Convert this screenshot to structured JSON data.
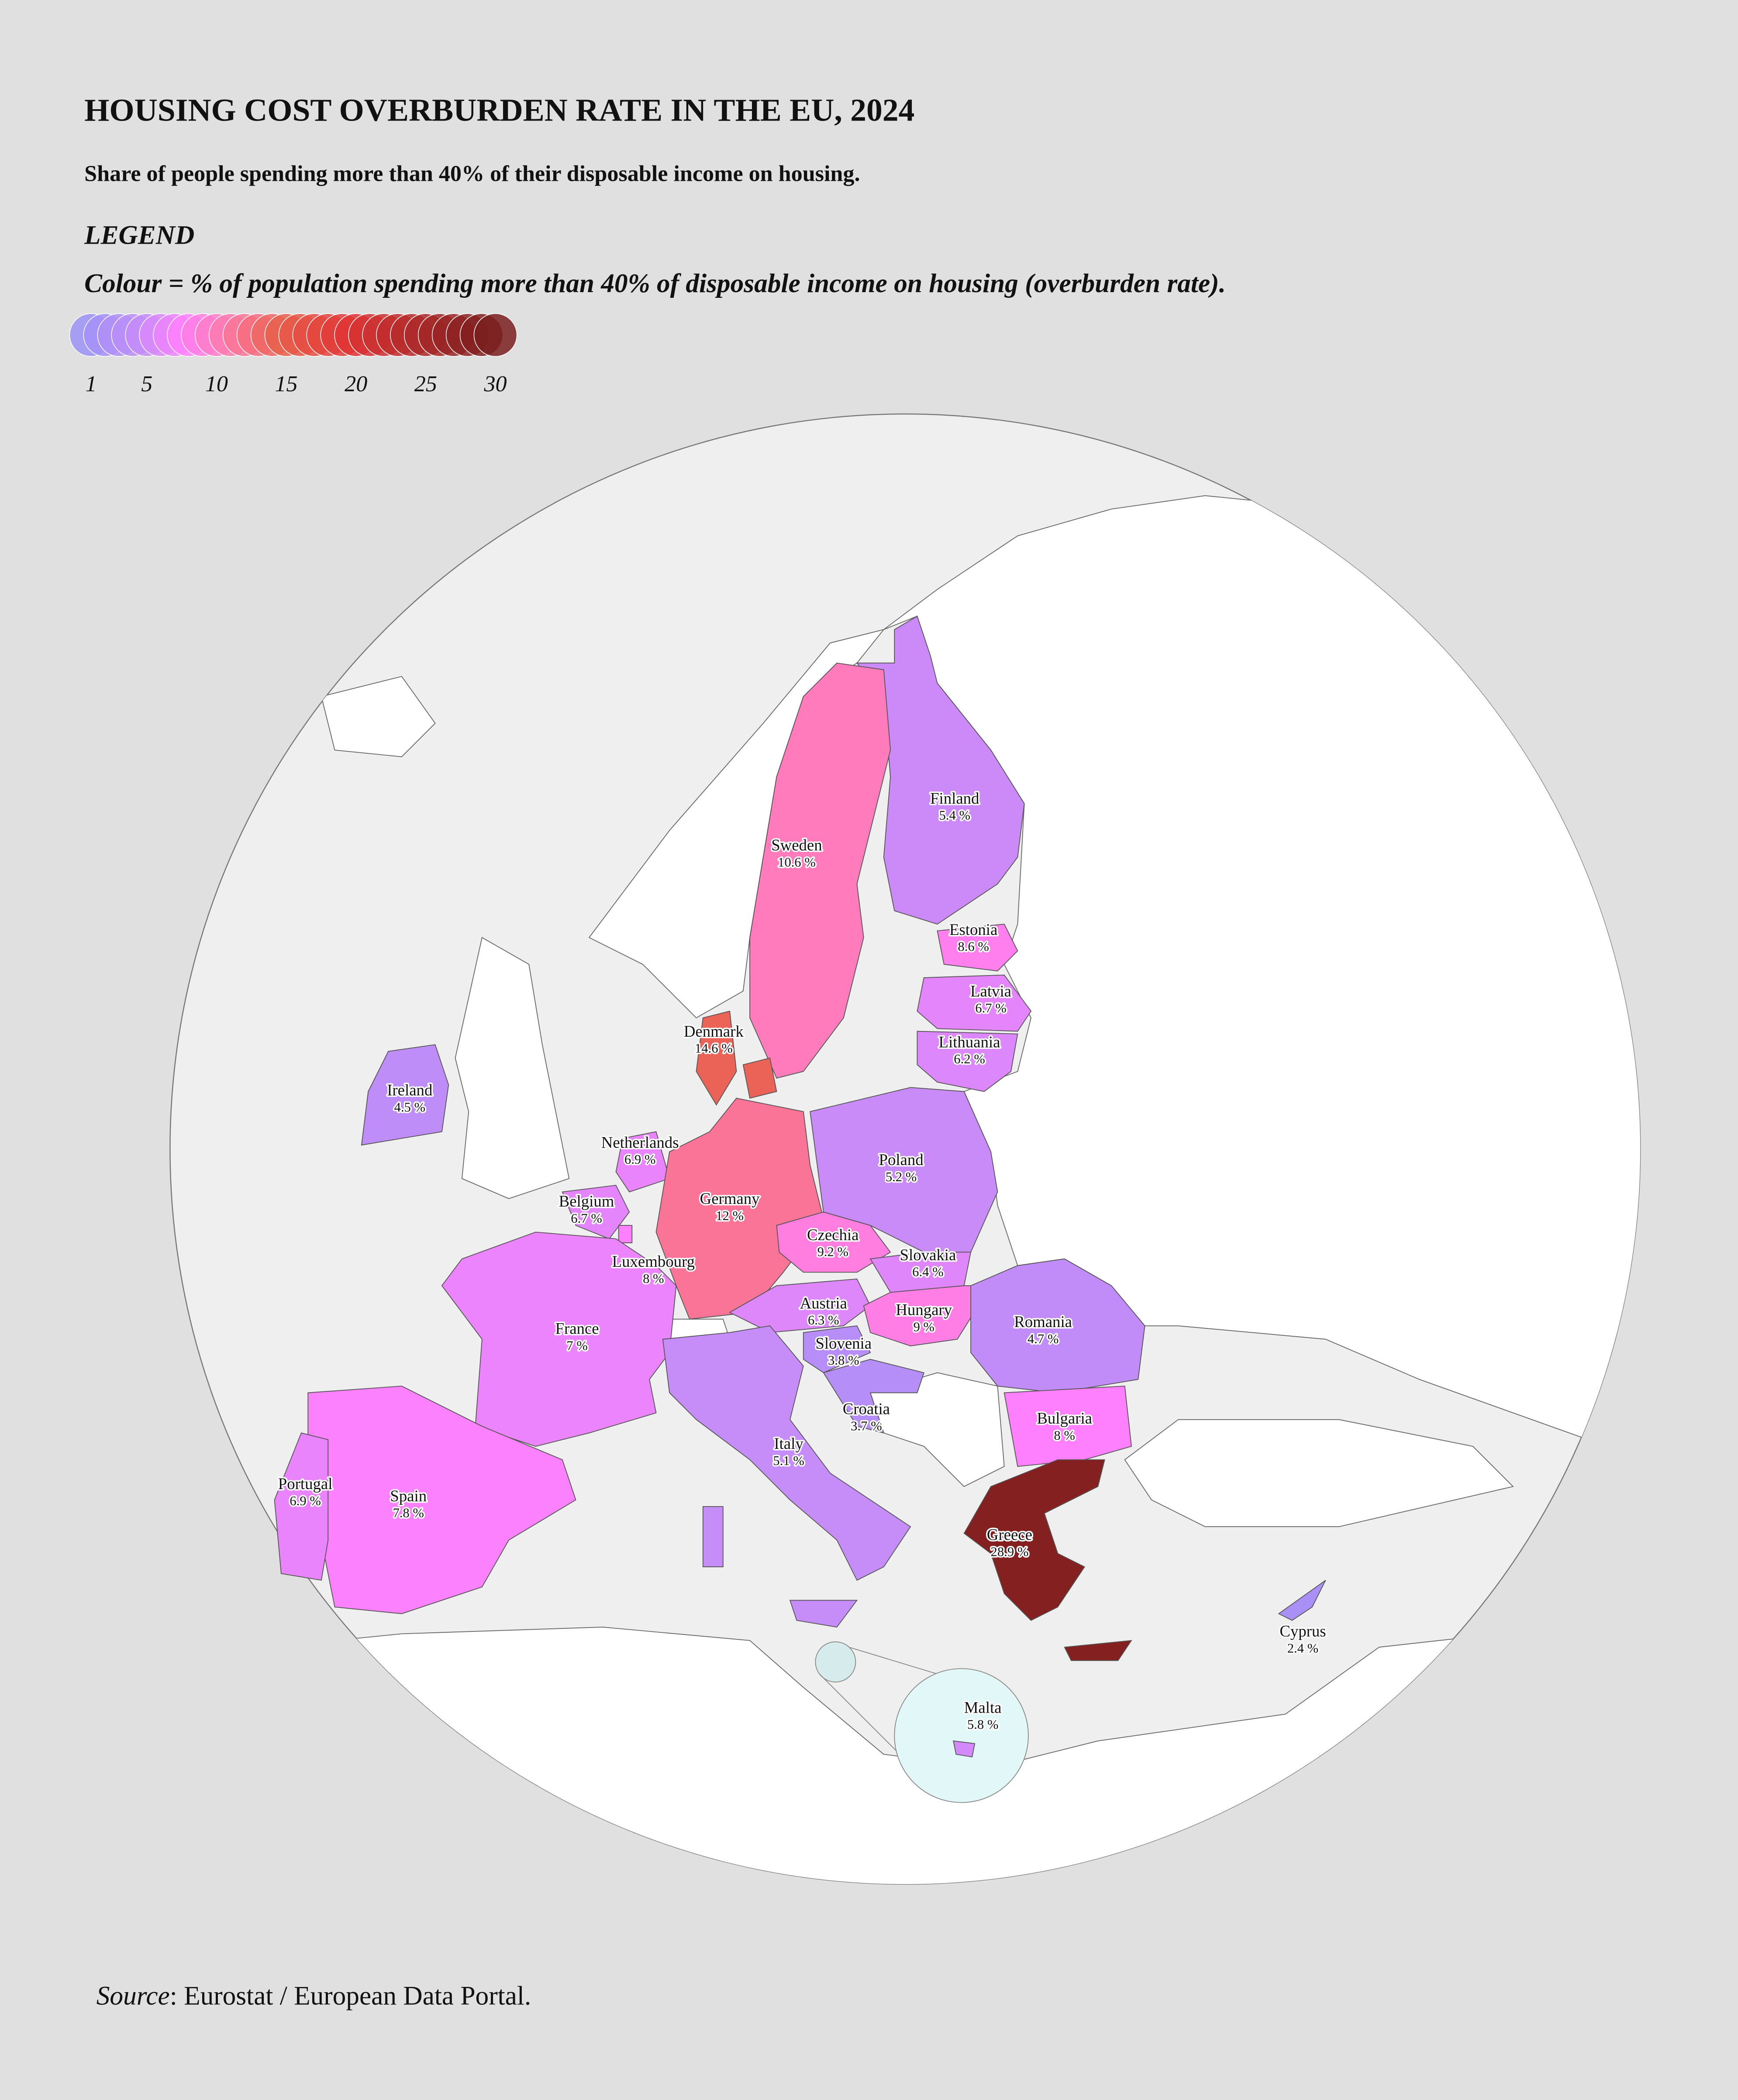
{
  "title": "HOUSING COST OVERBURDEN RATE IN THE EU, 2024",
  "subtitle": "Share of people spending more than 40% of their disposable income on housing.",
  "legend": {
    "heading": "LEGEND",
    "text": "Colour = % of population spending more than 40% of disposable income on housing (overburden rate).",
    "ticks": [
      1,
      5,
      10,
      15,
      20,
      25,
      30
    ]
  },
  "map": {
    "type": "choropleth",
    "color_stops": [
      [
        1,
        "#9a92f6"
      ],
      [
        5,
        "#c48cf8"
      ],
      [
        8,
        "#ff80ff"
      ],
      [
        11,
        "#ff7ab0"
      ],
      [
        15,
        "#e8604c"
      ],
      [
        20,
        "#e03434"
      ],
      [
        30,
        "#7a1e1e"
      ]
    ],
    "regions": [
      {
        "name": "Finland",
        "value": 5.4,
        "value_label": "5.4 %"
      },
      {
        "name": "Sweden",
        "value": 10.6,
        "value_label": "10.6 %"
      },
      {
        "name": "Estonia",
        "value": 8.6,
        "value_label": "8.6 %"
      },
      {
        "name": "Latvia",
        "value": 6.7,
        "value_label": "6.7 %"
      },
      {
        "name": "Lithuania",
        "value": 6.2,
        "value_label": "6.2 %"
      },
      {
        "name": "Denmark",
        "value": 14.6,
        "value_label": "14.6 %"
      },
      {
        "name": "Ireland",
        "value": 4.5,
        "value_label": "4.5 %"
      },
      {
        "name": "Netherlands",
        "value": 6.9,
        "value_label": "6.9 %"
      },
      {
        "name": "Belgium",
        "value": 6.7,
        "value_label": "6.7 %"
      },
      {
        "name": "Luxembourg",
        "value": 8,
        "value_label": "8 %"
      },
      {
        "name": "Germany",
        "value": 12,
        "value_label": "12 %"
      },
      {
        "name": "Poland",
        "value": 5.2,
        "value_label": "5.2 %"
      },
      {
        "name": "Czechia",
        "value": 9.2,
        "value_label": "9.2 %"
      },
      {
        "name": "Slovakia",
        "value": 6.4,
        "value_label": "6.4 %"
      },
      {
        "name": "Austria",
        "value": 6.3,
        "value_label": "6.3 %"
      },
      {
        "name": "Hungary",
        "value": 9,
        "value_label": "9 %"
      },
      {
        "name": "Slovenia",
        "value": 3.8,
        "value_label": "3.8 %"
      },
      {
        "name": "France",
        "value": 7,
        "value_label": "7 %"
      },
      {
        "name": "Croatia",
        "value": 3.7,
        "value_label": "3.7 %"
      },
      {
        "name": "Romania",
        "value": 4.7,
        "value_label": "4.7 %"
      },
      {
        "name": "Bulgaria",
        "value": 8,
        "value_label": "8 %"
      },
      {
        "name": "Italy",
        "value": 5.1,
        "value_label": "5.1 %"
      },
      {
        "name": "Spain",
        "value": 7.8,
        "value_label": "7.8 %"
      },
      {
        "name": "Portugal",
        "value": 6.9,
        "value_label": "6.9 %"
      },
      {
        "name": "Greece",
        "value": 28.9,
        "value_label": "28.9 %"
      },
      {
        "name": "Cyprus",
        "value": 2.4,
        "value_label": "2.4 %"
      },
      {
        "name": "Malta",
        "value": 5.8,
        "value_label": "5.8 %"
      }
    ]
  },
  "source": {
    "label": "Source",
    "text": ": Eurostat / European Data Portal."
  }
}
